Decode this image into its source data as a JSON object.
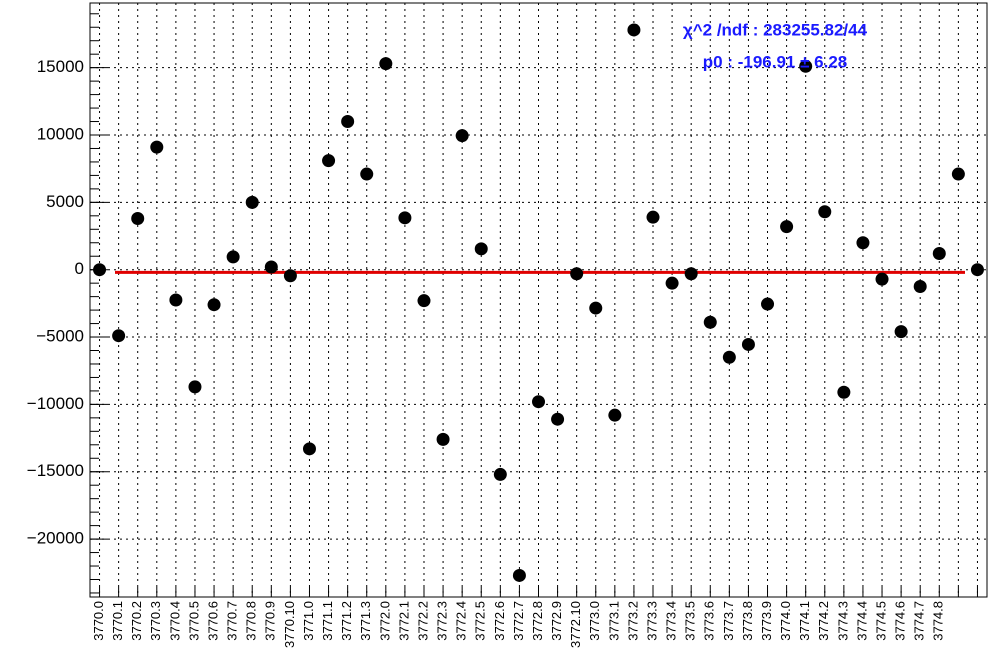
{
  "chart_data": {
    "type": "scatter",
    "categories": [
      "3770.0",
      "3770.1",
      "3770.2",
      "3770.3",
      "3770.4",
      "3770.5",
      "3770.6",
      "3770.7",
      "3770.8",
      "3770.9",
      "3770.10",
      "3771.0",
      "3771.1",
      "3771.2",
      "3771.3",
      "3772.0",
      "3772.1",
      "3772.2",
      "3772.3",
      "3772.4",
      "3772.5",
      "3772.6",
      "3772.7",
      "3772.8",
      "3772.9",
      "3772.10",
      "3773.0",
      "3773.1",
      "3773.2",
      "3773.3",
      "3773.4",
      "3773.5",
      "3773.6",
      "3773.7",
      "3773.8",
      "3773.9",
      "3774.0",
      "3774.1",
      "3774.2",
      "3774.3",
      "3774.4",
      "3774.5",
      "3774.6",
      "3774.7",
      "3774.8",
      null,
      null
    ],
    "values": [
      0,
      -4900,
      3800,
      9100,
      -2250,
      -8700,
      -2600,
      950,
      5000,
      200,
      -450,
      -13300,
      8100,
      11000,
      7100,
      15300,
      3850,
      -2300,
      -12600,
      9950,
      1550,
      -15200,
      -22700,
      -9800,
      -11100,
      -300,
      -2850,
      -10800,
      17800,
      3900,
      -1000,
      -300,
      -3900,
      -6500,
      -5550,
      -2550,
      3200,
      15100,
      4300,
      -9100,
      2000,
      -700,
      -4600,
      -1250,
      1200,
      7100,
      0
    ],
    "color": "#000000",
    "fit": {
      "value": -196.91,
      "color": "#e00000"
    },
    "stats": [
      "χ^2 /ndf : 283255.82/44",
      "p0 : -196.91 ±  6.28"
    ],
    "ylim": [
      -24300,
      19800
    ],
    "yticks": [
      {
        "value": -20000,
        "label": "−20000"
      },
      {
        "value": -15000,
        "label": "−15000"
      },
      {
        "value": -10000,
        "label": "−10000"
      },
      {
        "value": -5000,
        "label": "−5000"
      },
      0,
      5000,
      10000,
      15000
    ],
    "grid": true
  }
}
